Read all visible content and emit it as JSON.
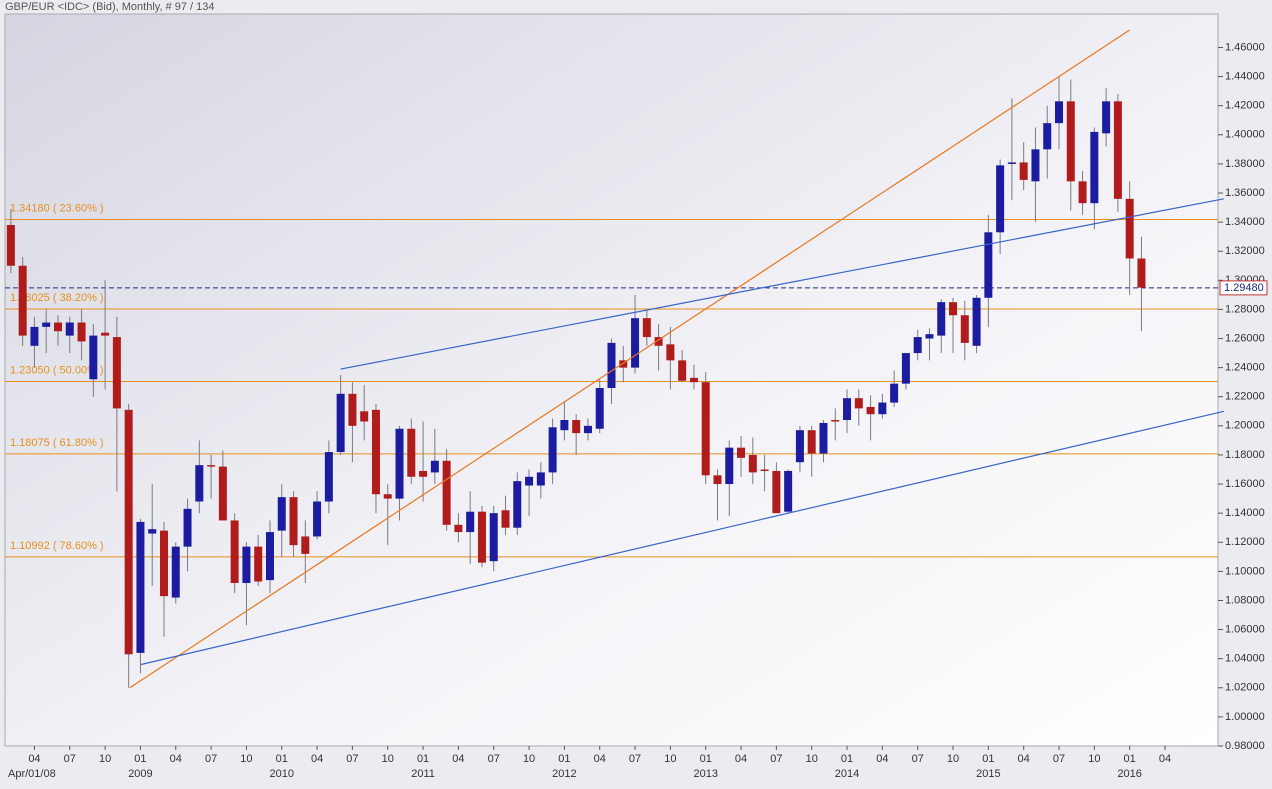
{
  "chart_data": {
    "type": "candlestick",
    "title": "GBP/EUR <IDC> (Bid), Monthly, # 97 / 134",
    "up_color": "#1c1ca0",
    "down_color": "#b01c1c",
    "level_color": "#e8901e",
    "last_price_color": "#1c2a80",
    "ylim": [
      0.98,
      1.483
    ],
    "yticks": [
      {
        "value": 0.98,
        "label": "0.98000"
      },
      {
        "value": 1.0,
        "label": "1.00000"
      },
      {
        "value": 1.02,
        "label": "1.02000"
      },
      {
        "value": 1.04,
        "label": "1.04000"
      },
      {
        "value": 1.06,
        "label": "1.06000"
      },
      {
        "value": 1.08,
        "label": "1.08000"
      },
      {
        "value": 1.1,
        "label": "1.10000"
      },
      {
        "value": 1.12,
        "label": "1.12000"
      },
      {
        "value": 1.14,
        "label": "1.14000"
      },
      {
        "value": 1.16,
        "label": "1.16000"
      },
      {
        "value": 1.18,
        "label": "1.18000"
      },
      {
        "value": 1.2,
        "label": "1.20000"
      },
      {
        "value": 1.22,
        "label": "1.22000"
      },
      {
        "value": 1.24,
        "label": "1.24000"
      },
      {
        "value": 1.26,
        "label": "1.26000"
      },
      {
        "value": 1.28,
        "label": "1.28000"
      },
      {
        "value": 1.3,
        "label": "1.30000"
      },
      {
        "value": 1.32,
        "label": "1.32000"
      },
      {
        "value": 1.34,
        "label": "1.34000"
      },
      {
        "value": 1.36,
        "label": "1.36000"
      },
      {
        "value": 1.38,
        "label": "1.38000"
      },
      {
        "value": 1.4,
        "label": "1.40000"
      },
      {
        "value": 1.42,
        "label": "1.42000"
      },
      {
        "value": 1.44,
        "label": "1.44000"
      },
      {
        "value": 1.46,
        "label": "1.46000"
      }
    ],
    "categories": [
      null,
      null,
      "04",
      null,
      null,
      "07",
      null,
      null,
      "10",
      null,
      null,
      "01",
      null,
      null,
      "04",
      null,
      null,
      "07",
      null,
      null,
      "10",
      null,
      null,
      "01",
      null,
      null,
      "04",
      null,
      null,
      "07",
      null,
      null,
      "10",
      null,
      null,
      "01",
      null,
      null,
      "04",
      null,
      null,
      "07",
      null,
      null,
      "10",
      null,
      null,
      "01",
      null,
      null,
      "04",
      null,
      null,
      "07",
      null,
      null,
      "10",
      null,
      null,
      "01",
      null,
      null,
      "04",
      null,
      null,
      "07",
      null,
      null,
      "10",
      null,
      null,
      "01",
      null,
      null,
      "04",
      null,
      null,
      "07",
      null,
      null,
      "10",
      null,
      null,
      "01",
      null,
      null,
      "04",
      null,
      null,
      "07",
      null,
      null,
      "10",
      null,
      null,
      "01",
      null,
      null,
      "04",
      null,
      null,
      null,
      null
    ],
    "year_labels": [
      null,
      null,
      "Apr/01/08",
      null,
      null,
      null,
      null,
      null,
      null,
      null,
      null,
      "2009",
      null,
      null,
      null,
      null,
      null,
      null,
      null,
      null,
      null,
      null,
      null,
      "2010",
      null,
      null,
      null,
      null,
      null,
      null,
      null,
      null,
      null,
      null,
      null,
      "2011",
      null,
      null,
      null,
      null,
      null,
      null,
      null,
      null,
      null,
      null,
      null,
      "2012",
      null,
      null,
      null,
      null,
      null,
      null,
      null,
      null,
      null,
      null,
      null,
      "2013",
      null,
      null,
      null,
      null,
      null,
      null,
      null,
      null,
      null,
      null,
      null,
      "2014",
      null,
      null,
      null,
      null,
      null,
      null,
      null,
      null,
      null,
      null,
      null,
      "2015",
      null,
      null,
      null,
      null,
      null,
      null,
      null,
      null,
      null,
      null,
      null,
      "2016",
      null,
      null,
      null,
      null,
      null,
      null,
      null
    ],
    "open": [
      1.338,
      1.31,
      1.255,
      1.268,
      1.271,
      1.262,
      1.271,
      1.232,
      1.264,
      1.261,
      1.211,
      1.044,
      1.126,
      1.128,
      1.082,
      1.117,
      1.148,
      1.173,
      1.172,
      1.135,
      1.092,
      1.117,
      1.094,
      1.128,
      1.151,
      1.124,
      1.124,
      1.148,
      1.182,
      1.222,
      1.21,
      1.211,
      1.153,
      1.15,
      1.198,
      1.169,
      1.168,
      1.176,
      1.132,
      1.127,
      1.141,
      1.107,
      1.142,
      1.13,
      1.159,
      1.159,
      1.168,
      1.197,
      1.204,
      1.195,
      1.198,
      1.226,
      1.245,
      1.24,
      1.274,
      1.261,
      1.256,
      1.245,
      1.233,
      1.23,
      1.166,
      1.16,
      1.185,
      1.18,
      1.17,
      1.169,
      1.141,
      1.175,
      1.197,
      1.181,
      1.204,
      1.204,
      1.219,
      1.213,
      1.208,
      1.216,
      1.229,
      1.25,
      1.26,
      1.262,
      1.285,
      1.276,
      1.255,
      1.288,
      1.333,
      1.38,
      1.381,
      1.368,
      1.39,
      1.408,
      1.423,
      1.368,
      1.353,
      1.401,
      1.423,
      1.356,
      1.315,
      null,
      null,
      null,
      null,
      null,
      null
    ],
    "high": [
      1.349,
      1.316,
      1.275,
      1.28,
      1.276,
      1.275,
      1.28,
      1.27,
      1.3,
      1.275,
      1.215,
      1.136,
      1.16,
      1.134,
      1.12,
      1.15,
      1.19,
      1.18,
      1.183,
      1.14,
      1.12,
      1.125,
      1.135,
      1.16,
      1.155,
      1.135,
      1.155,
      1.19,
      1.235,
      1.23,
      1.228,
      1.215,
      1.16,
      1.2,
      1.205,
      1.203,
      1.198,
      1.184,
      1.14,
      1.155,
      1.145,
      1.145,
      1.152,
      1.168,
      1.17,
      1.175,
      1.205,
      1.217,
      1.208,
      1.205,
      1.232,
      1.26,
      1.255,
      1.29,
      1.28,
      1.27,
      1.268,
      1.252,
      1.242,
      1.237,
      1.17,
      1.19,
      1.193,
      1.192,
      1.18,
      1.175,
      1.17,
      1.2,
      1.2,
      1.204,
      1.212,
      1.225,
      1.225,
      1.221,
      1.222,
      1.238,
      1.25,
      1.266,
      1.267,
      1.287,
      1.288,
      1.286,
      1.29,
      1.345,
      1.383,
      1.425,
      1.395,
      1.405,
      1.42,
      1.44,
      1.438,
      1.375,
      1.405,
      1.432,
      1.428,
      1.368,
      1.33,
      null,
      null,
      null,
      null,
      null,
      null
    ],
    "low": [
      1.305,
      1.255,
      1.24,
      1.25,
      1.255,
      1.25,
      1.245,
      1.22,
      1.225,
      1.155,
      1.02,
      1.03,
      1.09,
      1.055,
      1.078,
      1.1,
      1.14,
      1.15,
      1.135,
      1.085,
      1.063,
      1.09,
      1.085,
      1.11,
      1.11,
      1.092,
      1.122,
      1.14,
      1.18,
      1.175,
      1.19,
      1.14,
      1.118,
      1.135,
      1.16,
      1.148,
      1.16,
      1.128,
      1.12,
      1.105,
      1.103,
      1.1,
      1.125,
      1.125,
      1.138,
      1.15,
      1.16,
      1.19,
      1.18,
      1.19,
      1.195,
      1.215,
      1.23,
      1.236,
      1.255,
      1.238,
      1.225,
      1.23,
      1.225,
      1.16,
      1.135,
      1.138,
      1.165,
      1.16,
      1.155,
      1.14,
      1.14,
      1.168,
      1.165,
      1.175,
      1.19,
      1.195,
      1.2,
      1.19,
      1.205,
      1.213,
      1.225,
      1.245,
      1.245,
      1.25,
      1.25,
      1.245,
      1.25,
      1.268,
      1.318,
      1.355,
      1.362,
      1.34,
      1.37,
      1.39,
      1.348,
      1.345,
      1.335,
      1.392,
      1.347,
      1.29,
      1.265,
      null,
      null,
      null,
      null,
      null,
      null
    ],
    "close": [
      1.31,
      1.262,
      1.268,
      1.271,
      1.265,
      1.271,
      1.258,
      1.262,
      1.262,
      1.212,
      1.043,
      1.134,
      1.129,
      1.083,
      1.117,
      1.143,
      1.173,
      1.172,
      1.135,
      1.092,
      1.117,
      1.093,
      1.127,
      1.151,
      1.118,
      1.112,
      1.148,
      1.182,
      1.222,
      1.2,
      1.203,
      1.153,
      1.15,
      1.198,
      1.165,
      1.165,
      1.176,
      1.132,
      1.127,
      1.141,
      1.106,
      1.14,
      1.13,
      1.162,
      1.165,
      1.168,
      1.199,
      1.204,
      1.195,
      1.2,
      1.226,
      1.257,
      1.24,
      1.274,
      1.261,
      1.255,
      1.245,
      1.231,
      1.23,
      1.166,
      1.16,
      1.185,
      1.178,
      1.168,
      1.169,
      1.14,
      1.169,
      1.197,
      1.181,
      1.202,
      1.203,
      1.219,
      1.212,
      1.208,
      1.216,
      1.229,
      1.25,
      1.261,
      1.263,
      1.285,
      1.276,
      1.257,
      1.288,
      1.333,
      1.379,
      1.381,
      1.369,
      1.39,
      1.408,
      1.423,
      1.368,
      1.353,
      1.402,
      1.423,
      1.356,
      1.315,
      1.295,
      null,
      null,
      null,
      null,
      null,
      null
    ],
    "levels": [
      {
        "value": 1.3418,
        "label": "1.34180 ( 23.60% )"
      },
      {
        "value": 1.28025,
        "label": "1.28025 ( 38.20% )"
      },
      {
        "value": 1.2305,
        "label": "1.23050 ( 50.00% )"
      },
      {
        "value": 1.18075,
        "label": "1.18075 ( 61.80% )"
      },
      {
        "value": 1.10992,
        "label": "1.10992 ( 78.60% )"
      }
    ],
    "last_price": {
      "value": 1.2948,
      "label": "1.29480"
    },
    "trend_lines": [
      {
        "color": "#e8781e",
        "start": [
          10.1,
          1.02
        ],
        "end": [
          95.0,
          1.472
        ]
      },
      {
        "color": "#3a64c8",
        "start": [
          11.05,
          1.036
        ],
        "end": [
          103,
          1.21
        ]
      },
      {
        "color": "#3a64c8",
        "start": [
          28.0,
          1.239
        ],
        "end": [
          103,
          1.356
        ]
      }
    ]
  }
}
